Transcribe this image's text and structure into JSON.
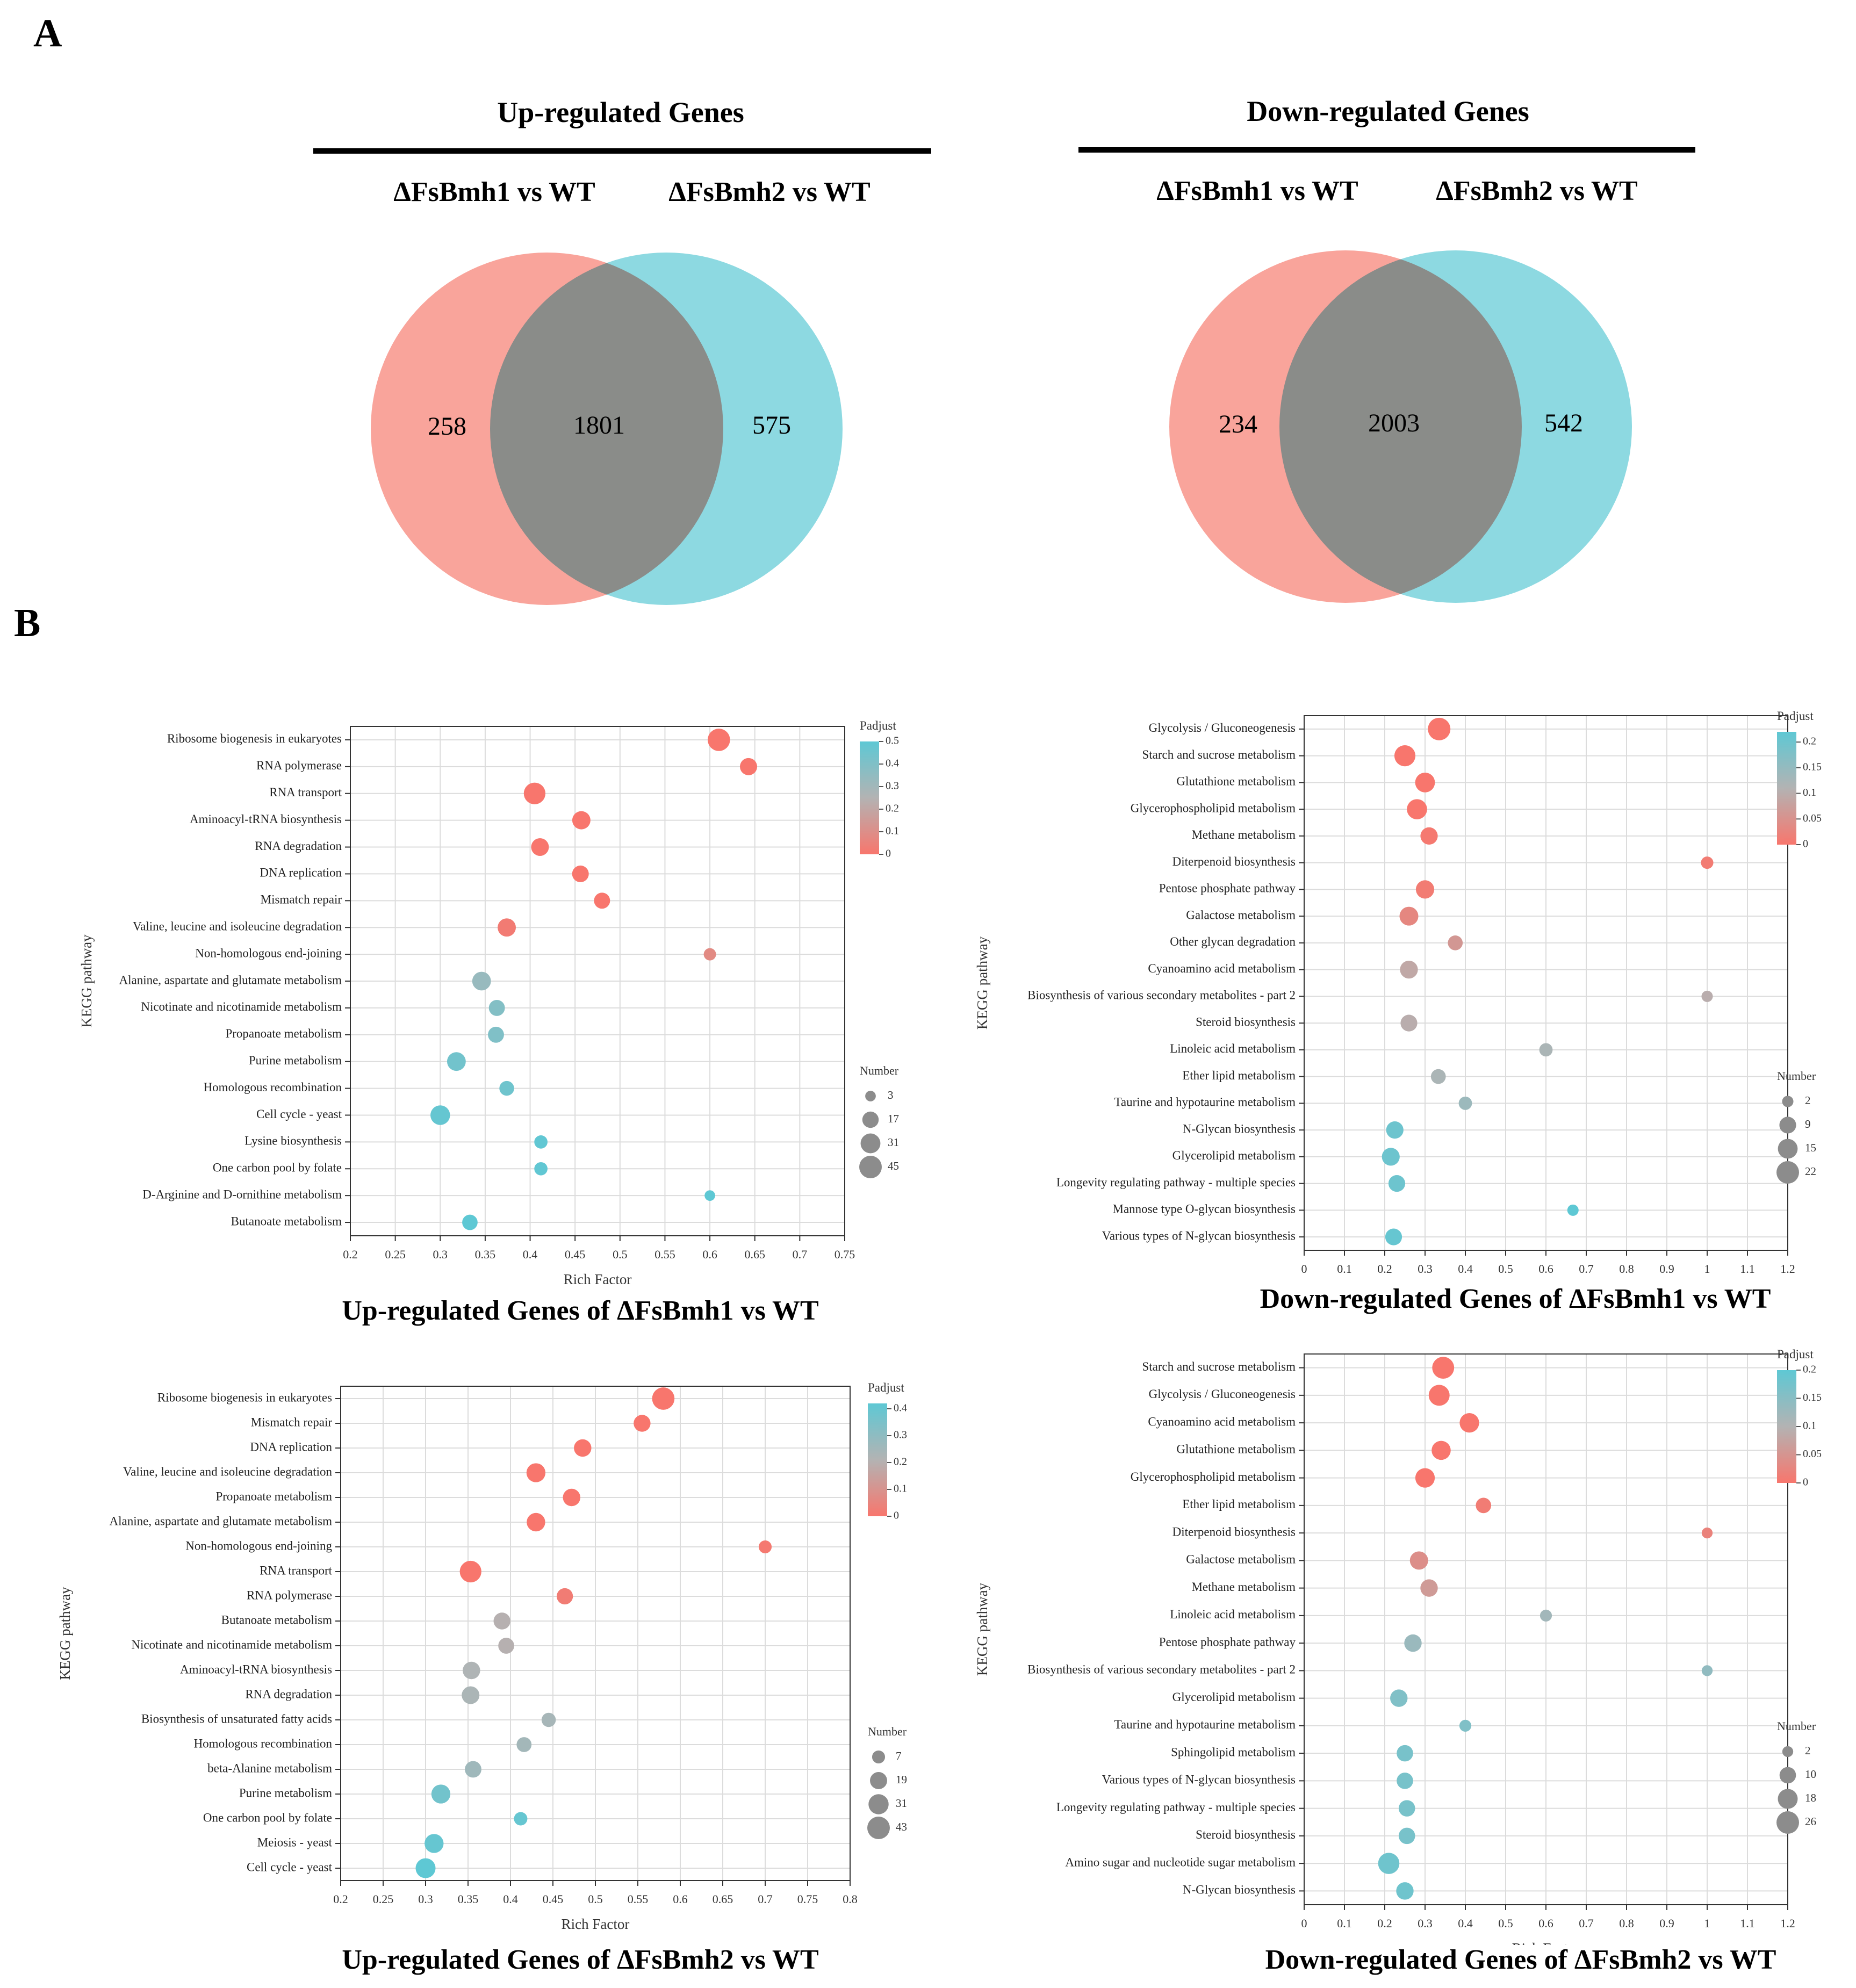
{
  "panel_labels": {
    "a": "A",
    "b": "B"
  },
  "venn": [
    {
      "title": "Up-regulated Genes",
      "left_label": "ΔFsBmh1 vs WT",
      "right_label": "ΔFsBmh2 vs WT",
      "left_only": "258",
      "overlap": "1801",
      "right_only": "575",
      "left_color": "#f8948a",
      "right_color": "#79d2dc"
    },
    {
      "title": "Down-regulated Genes",
      "left_label": "ΔFsBmh1 vs WT",
      "right_label": "ΔFsBmh2 vs WT",
      "left_only": "234",
      "overlap": "2003",
      "right_only": "542",
      "left_color": "#f8948a",
      "right_color": "#79d2dc"
    }
  ],
  "chart_data": [
    {
      "type": "scatter",
      "title": "Up-regulated Genes of ΔFsBmh1 vs WT",
      "xlabel": "Rich Factor",
      "ylabel": "KEGG pathway",
      "xlim": [
        0.2,
        0.75
      ],
      "xticks": [
        0.2,
        0.25,
        0.3,
        0.35,
        0.4,
        0.45,
        0.5,
        0.55,
        0.6,
        0.65,
        0.7,
        0.75
      ],
      "xtick_labels": [
        "0.2",
        "0.25",
        "0.3",
        "0.35",
        "0.4",
        "0.45",
        "0.5",
        "0.55",
        "0.6",
        "0.65",
        "0.7",
        "0.75"
      ],
      "grid": true,
      "color_legend": {
        "title": "Padjust",
        "max": 0.5,
        "ticks": [
          0.5,
          0.4,
          0.3,
          0.2,
          0.1,
          0
        ],
        "tick_labels": [
          "0.5",
          "0.4",
          "0.3",
          "0.2",
          "0.1",
          "0"
        ],
        "low_color": "#f8766d",
        "mid_color": "#b3b3b3",
        "high_color": "#5ec8d4"
      },
      "size_legend": {
        "title": "Number",
        "values": [
          3,
          17,
          31,
          45
        ],
        "value_labels": [
          "3",
          "17",
          "31",
          "45"
        ],
        "max": 45
      },
      "pathways": [
        "Ribosome biogenesis in eukaryotes",
        "RNA polymerase",
        "RNA transport",
        "Aminoacyl-tRNA biosynthesis",
        "RNA degradation",
        "DNA replication",
        "Mismatch repair",
        "Valine, leucine and isoleucine degradation",
        "Non-homologous end-joining",
        "Alanine, aspartate and glutamate metabolism",
        "Nicotinate and nicotinamide metabolism",
        "Propanoate metabolism",
        "Purine metabolism",
        "Homologous recombination",
        "Cell cycle - yeast",
        "Lysine biosynthesis",
        "One carbon pool by folate",
        "D-Arginine and D-ornithine metabolism",
        "Butanoate metabolism"
      ],
      "rich_factor": [
        0.61,
        0.643,
        0.405,
        0.457,
        0.411,
        0.456,
        0.48,
        0.374,
        0.6,
        0.346,
        0.363,
        0.362,
        0.318,
        0.374,
        0.3,
        0.412,
        0.412,
        0.6,
        0.333
      ],
      "count": [
        44,
        20,
        40,
        24,
        22,
        18,
        16,
        24,
        6,
        26,
        16,
        16,
        26,
        12,
        30,
        8,
        8,
        3,
        14
      ],
      "padjust": [
        0.0,
        0.0,
        0.0,
        0.0,
        0.0,
        0.0,
        0.0,
        0.02,
        0.08,
        0.33,
        0.39,
        0.4,
        0.44,
        0.45,
        0.48,
        0.49,
        0.49,
        0.5,
        0.5
      ]
    },
    {
      "type": "scatter",
      "title": "Down-regulated Genes of ΔFsBmh1 vs WT",
      "xlabel": "Rich Factor",
      "ylabel": "KEGG pathway",
      "xlim": [
        0,
        1.2
      ],
      "xticks": [
        0,
        0.1,
        0.2,
        0.3,
        0.4,
        0.5,
        0.6,
        0.7,
        0.8,
        0.9,
        1,
        1.1,
        1.2
      ],
      "xtick_labels": [
        "0",
        "0.1",
        "0.2",
        "0.3",
        "0.4",
        "0.5",
        "0.6",
        "0.7",
        "0.8",
        "0.9",
        "1",
        "1.1",
        "1.2"
      ],
      "grid": true,
      "color_legend": {
        "title": "Padjust",
        "max": 0.22,
        "ticks": [
          0.2,
          0.15,
          0.1,
          0.05,
          0
        ],
        "tick_labels": [
          "0.2",
          "0.15",
          "0.1",
          "0.05",
          "0"
        ],
        "low_color": "#f8766d",
        "mid_color": "#b3b3b3",
        "high_color": "#5ec8d4"
      },
      "size_legend": {
        "title": "Number",
        "values": [
          2,
          9,
          15,
          22
        ],
        "value_labels": [
          "2",
          "9",
          "15",
          "22"
        ],
        "max": 22
      },
      "pathways": [
        "Glycolysis / Gluconeogenesis",
        "Starch and sucrose metabolism",
        "Glutathione metabolism",
        "Glycerophospholipid metabolism",
        "Methane metabolism",
        "Diterpenoid biosynthesis",
        "Pentose phosphate pathway",
        "Galactose metabolism",
        "Other glycan degradation",
        "Cyanoamino acid metabolism",
        "Biosynthesis of various secondary metabolites - part 2",
        "Steroid biosynthesis",
        "Linoleic acid metabolism",
        "Ether lipid metabolism",
        "Taurine and hypotaurine metabolism",
        "N-Glycan biosynthesis",
        "Glycerolipid metabolism",
        "Longevity regulating pathway - multiple species",
        "Mannose type O-glycan biosynthesis",
        "Various types of N-glycan biosynthesis"
      ],
      "rich_factor": [
        0.335,
        0.25,
        0.3,
        0.28,
        0.31,
        1.0,
        0.3,
        0.26,
        0.375,
        0.26,
        1.0,
        0.26,
        0.6,
        0.333,
        0.4,
        0.225,
        0.215,
        0.23,
        0.667,
        0.222
      ],
      "count": [
        22,
        18,
        15,
        16,
        10,
        3,
        12,
        13,
        6,
        11,
        2,
        9,
        4,
        6,
        4,
        10,
        11,
        9,
        2,
        9
      ],
      "padjust": [
        0.0,
        0.0,
        0.0,
        0.0,
        0.005,
        0.01,
        0.01,
        0.03,
        0.06,
        0.09,
        0.1,
        0.1,
        0.12,
        0.12,
        0.14,
        0.2,
        0.2,
        0.2,
        0.22,
        0.21
      ]
    },
    {
      "type": "scatter",
      "title": "Up-regulated Genes of ΔFsBmh2 vs WT",
      "xlabel": "Rich Factor",
      "ylabel": "KEGG pathway",
      "xlim": [
        0.2,
        0.8
      ],
      "xticks": [
        0.2,
        0.25,
        0.3,
        0.35,
        0.4,
        0.45,
        0.5,
        0.55,
        0.6,
        0.65,
        0.7,
        0.75,
        0.8
      ],
      "xtick_labels": [
        "0.2",
        "0.25",
        "0.3",
        "0.35",
        "0.4",
        "0.45",
        "0.5",
        "0.55",
        "0.6",
        "0.65",
        "0.7",
        "0.75",
        "0.8"
      ],
      "grid": true,
      "color_legend": {
        "title": "Padjust",
        "max": 0.42,
        "ticks": [
          0.4,
          0.3,
          0.2,
          0.1,
          0
        ],
        "tick_labels": [
          "0.4",
          "0.3",
          "0.2",
          "0.1",
          "0"
        ],
        "low_color": "#f8766d",
        "mid_color": "#b3b3b3",
        "high_color": "#5ec8d4"
      },
      "size_legend": {
        "title": "Number",
        "values": [
          7,
          19,
          31,
          43
        ],
        "value_labels": [
          "7",
          "19",
          "31",
          "43"
        ],
        "max": 43
      },
      "pathways": [
        "Ribosome biogenesis in eukaryotes",
        "Mismatch repair",
        "DNA replication",
        "Valine, leucine and isoleucine degradation",
        "Propanoate metabolism",
        "Alanine, aspartate and glutamate metabolism",
        "Non-homologous end-joining",
        "RNA transport",
        "RNA polymerase",
        "Butanoate metabolism",
        "Nicotinate and nicotinamide metabolism",
        "Aminoacyl-tRNA biosynthesis",
        "RNA degradation",
        "Biosynthesis of unsaturated fatty acids",
        "Homologous recombination",
        "beta-Alanine metabolism",
        "Purine metabolism",
        "One carbon pool by folate",
        "Meiosis - yeast",
        "Cell cycle - yeast"
      ],
      "rich_factor": [
        0.58,
        0.555,
        0.485,
        0.43,
        0.472,
        0.43,
        0.7,
        0.353,
        0.464,
        0.39,
        0.395,
        0.354,
        0.353,
        0.445,
        0.416,
        0.356,
        0.318,
        0.412,
        0.31,
        0.3
      ],
      "count": [
        42,
        18,
        20,
        26,
        20,
        24,
        7,
        38,
        16,
        18,
        15,
        20,
        21,
        10,
        12,
        17,
        26,
        8,
        26,
        30
      ],
      "padjust": [
        0.0,
        0.0,
        0.0,
        0.0,
        0.0,
        0.0,
        0.01,
        0.0,
        0.02,
        0.2,
        0.2,
        0.22,
        0.23,
        0.24,
        0.25,
        0.26,
        0.37,
        0.4,
        0.4,
        0.42
      ]
    },
    {
      "type": "scatter",
      "title": "Down-regulated Genes of ΔFsBmh2 vs WT",
      "xlabel": "Rich Factor",
      "ylabel": "KEGG pathway",
      "xlim": [
        0,
        1.2
      ],
      "xticks": [
        0,
        0.1,
        0.2,
        0.3,
        0.4,
        0.5,
        0.6,
        0.7,
        0.8,
        0.9,
        1,
        1.1,
        1.2
      ],
      "xtick_labels": [
        "0",
        "0.1",
        "0.2",
        "0.3",
        "0.4",
        "0.5",
        "0.6",
        "0.7",
        "0.8",
        "0.9",
        "1",
        "1.1",
        "1.2"
      ],
      "grid": true,
      "color_legend": {
        "title": "Padjust",
        "max": 0.2,
        "ticks": [
          0.2,
          0.15,
          0.1,
          0.05,
          0
        ],
        "tick_labels": [
          "0.2",
          "0.15",
          "0.1",
          "0.05",
          "0"
        ],
        "low_color": "#f8766d",
        "mid_color": "#b3b3b3",
        "high_color": "#5ec8d4"
      },
      "size_legend": {
        "title": "Number",
        "values": [
          2,
          10,
          18,
          26
        ],
        "value_labels": [
          "2",
          "10",
          "18",
          "26"
        ],
        "max": 26
      },
      "pathways": [
        "Starch and sucrose metabolism",
        "Glycolysis / Gluconeogenesis",
        "Cyanoamino acid metabolism",
        "Glutathione metabolism",
        "Glycerophospholipid metabolism",
        "Ether lipid metabolism",
        "Diterpenoid biosynthesis",
        "Galactose metabolism",
        "Methane metabolism",
        "Linoleic acid metabolism",
        "Pentose phosphate pathway",
        "Biosynthesis of various secondary metabolites - part 2",
        "Glycerolipid metabolism",
        "Taurine and hypotaurine metabolism",
        "Sphingolipid metabolism",
        "Various types of N-glycan biosynthesis",
        "Longevity regulating pathway - multiple species",
        "Steroid biosynthesis",
        "Amino sugar and nucleotide sugar metabolism",
        "N-Glycan biosynthesis"
      ],
      "rich_factor": [
        0.345,
        0.335,
        0.41,
        0.34,
        0.3,
        0.445,
        1.0,
        0.285,
        0.31,
        0.6,
        0.27,
        1.0,
        0.235,
        0.4,
        0.25,
        0.25,
        0.255,
        0.255,
        0.21,
        0.25
      ],
      "count": [
        24,
        21,
        17,
        16,
        17,
        8,
        2,
        14,
        12,
        3,
        12,
        2,
        12,
        3,
        10,
        10,
        10,
        10,
        22,
        12
      ],
      "padjust": [
        0.0,
        0.0,
        0.0,
        0.0,
        0.0,
        0.01,
        0.02,
        0.04,
        0.06,
        0.12,
        0.13,
        0.14,
        0.16,
        0.16,
        0.17,
        0.17,
        0.17,
        0.17,
        0.18,
        0.18
      ]
    }
  ]
}
